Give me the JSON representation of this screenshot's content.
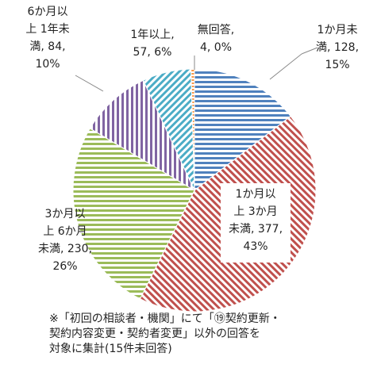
{
  "chart_data": {
    "type": "pie",
    "categories": [
      "1か月未満",
      "1か月以上 3か月未満",
      "3か月以上 6か月未満",
      "6か月以上 1年未満",
      "1年以上",
      "無回答"
    ],
    "values": [
      128,
      377,
      230,
      84,
      57,
      4
    ],
    "value_labels": [
      [
        "1か月未",
        "満, 128,",
        "15%"
      ],
      [
        "1か月以",
        "上 3か月",
        "未満, 377,",
        "43%"
      ],
      [
        "3か月以",
        "上 6か月",
        "未満, 230,",
        "26%"
      ],
      [
        "6か月以",
        "上 1年未",
        "満, 84,",
        "10%"
      ],
      [
        "1年以上,",
        "57, 6%"
      ],
      [
        "無回答,",
        "4, 0%"
      ]
    ],
    "colors": [
      "#4f81bd",
      "#c0504d",
      "#9bbb59",
      "#8064a2",
      "#4bacc6",
      "#f79646"
    ],
    "note": [
      "※「初回の相談者・機関」にて「⑲契約更新・",
      "契約内容変更・契約者変更」以外の回答を",
      "対象に集計(15件未回答)"
    ]
  }
}
